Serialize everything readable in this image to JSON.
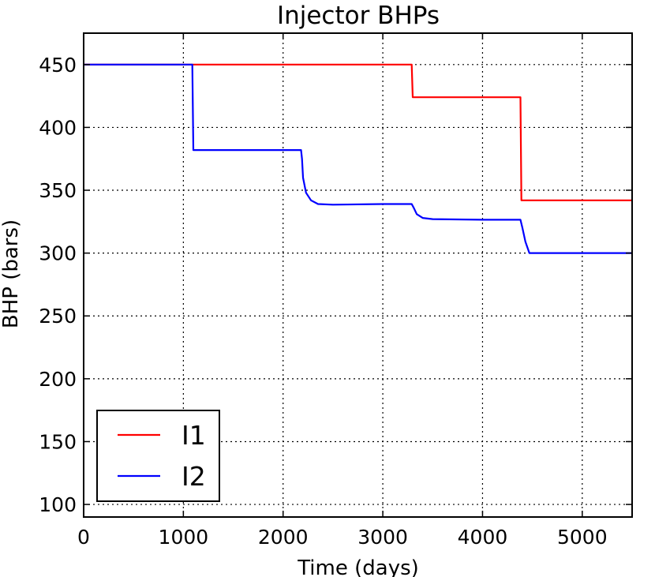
{
  "chart_data": {
    "type": "line",
    "title": "Injector BHPs",
    "xlabel": "Time (days)",
    "ylabel": "BHP (bars)",
    "xlim": [
      0,
      5500
    ],
    "ylim": [
      90,
      475
    ],
    "xticks": [
      0,
      1000,
      2000,
      3000,
      4000,
      5000
    ],
    "yticks": [
      100,
      150,
      200,
      250,
      300,
      350,
      400,
      450
    ],
    "grid": true,
    "legend_position": "lower-left",
    "series": [
      {
        "name": "I1",
        "color": "#ff0000",
        "x": [
          0,
          3290,
          3300,
          4380,
          4390,
          5500
        ],
        "y": [
          450,
          450,
          424,
          424,
          342,
          342
        ]
      },
      {
        "name": "I2",
        "color": "#0000ff",
        "x": [
          0,
          1090,
          1100,
          2180,
          2190,
          2200,
          2230,
          2280,
          2350,
          2500,
          3000,
          3290,
          3310,
          3340,
          3400,
          3500,
          4000,
          4380,
          4400,
          4430,
          4470,
          4600,
          5500
        ],
        "y": [
          450,
          450,
          382,
          382,
          375,
          360,
          348,
          342,
          339,
          338.5,
          339,
          339,
          336,
          331,
          328,
          327,
          326.5,
          326.5,
          320,
          309,
          300,
          300,
          300
        ]
      }
    ]
  }
}
